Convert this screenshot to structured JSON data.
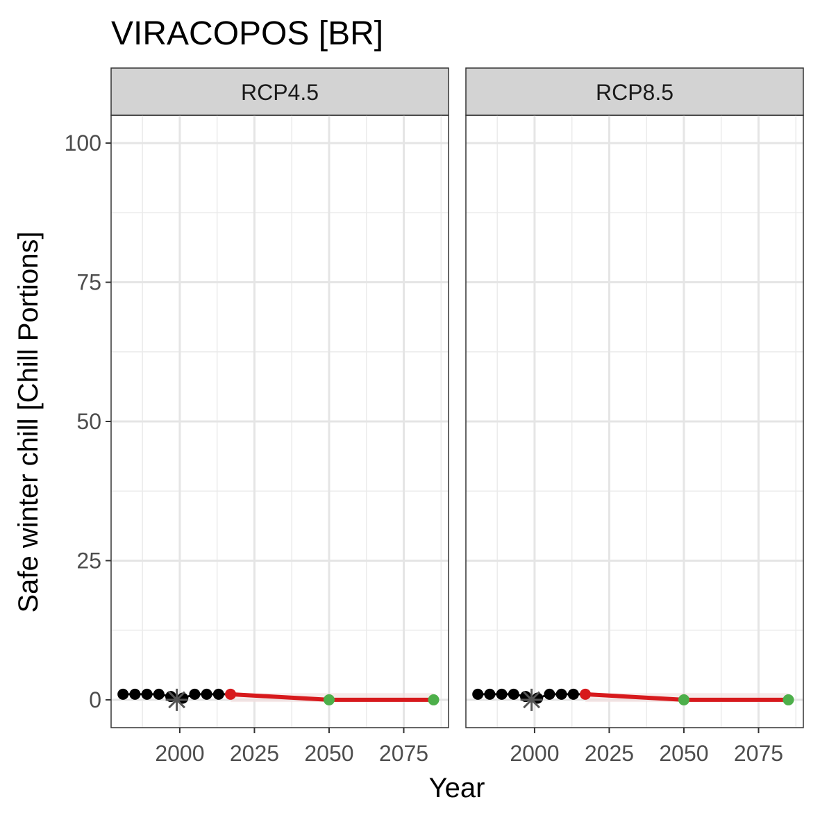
{
  "chart_data": {
    "type": "line",
    "title": "VIRACOPOS [BR]",
    "xlabel": "Year",
    "ylabel": "Safe winter chill [Chill Portions]",
    "xlim": [
      1977,
      2090
    ],
    "ylim": [
      -5,
      105
    ],
    "x_ticks": [
      2000,
      2025,
      2050,
      2075
    ],
    "y_ticks": [
      0,
      25,
      50,
      75,
      100
    ],
    "grid": true,
    "colors": {
      "observed": "#000000",
      "projection_line": "#d7191c",
      "projection_start": "#d7191c",
      "projection_points": "#4daf4a",
      "baseline_marker": "#555555",
      "strip_fill": "#d3d3d3"
    },
    "panels": [
      {
        "label": "RCP4.5",
        "observed": {
          "x": [
            1981,
            1985,
            1989,
            1993,
            1997,
            2001,
            2005,
            2009,
            2013
          ],
          "y": [
            1,
            1,
            1,
            1,
            0.6,
            0.3,
            1,
            1,
            1
          ]
        },
        "baseline": {
          "x": 1999,
          "y": 0
        },
        "projection": {
          "x": [
            2017,
            2050,
            2085
          ],
          "y": [
            1,
            0,
            0
          ]
        }
      },
      {
        "label": "RCP8.5",
        "observed": {
          "x": [
            1981,
            1985,
            1989,
            1993,
            1997,
            2001,
            2005,
            2009,
            2013
          ],
          "y": [
            1,
            1,
            1,
            1,
            0.6,
            0.3,
            1,
            1,
            1
          ]
        },
        "baseline": {
          "x": 1999,
          "y": 0
        },
        "projection": {
          "x": [
            2017,
            2050,
            2085
          ],
          "y": [
            1,
            0,
            0
          ]
        }
      }
    ]
  }
}
